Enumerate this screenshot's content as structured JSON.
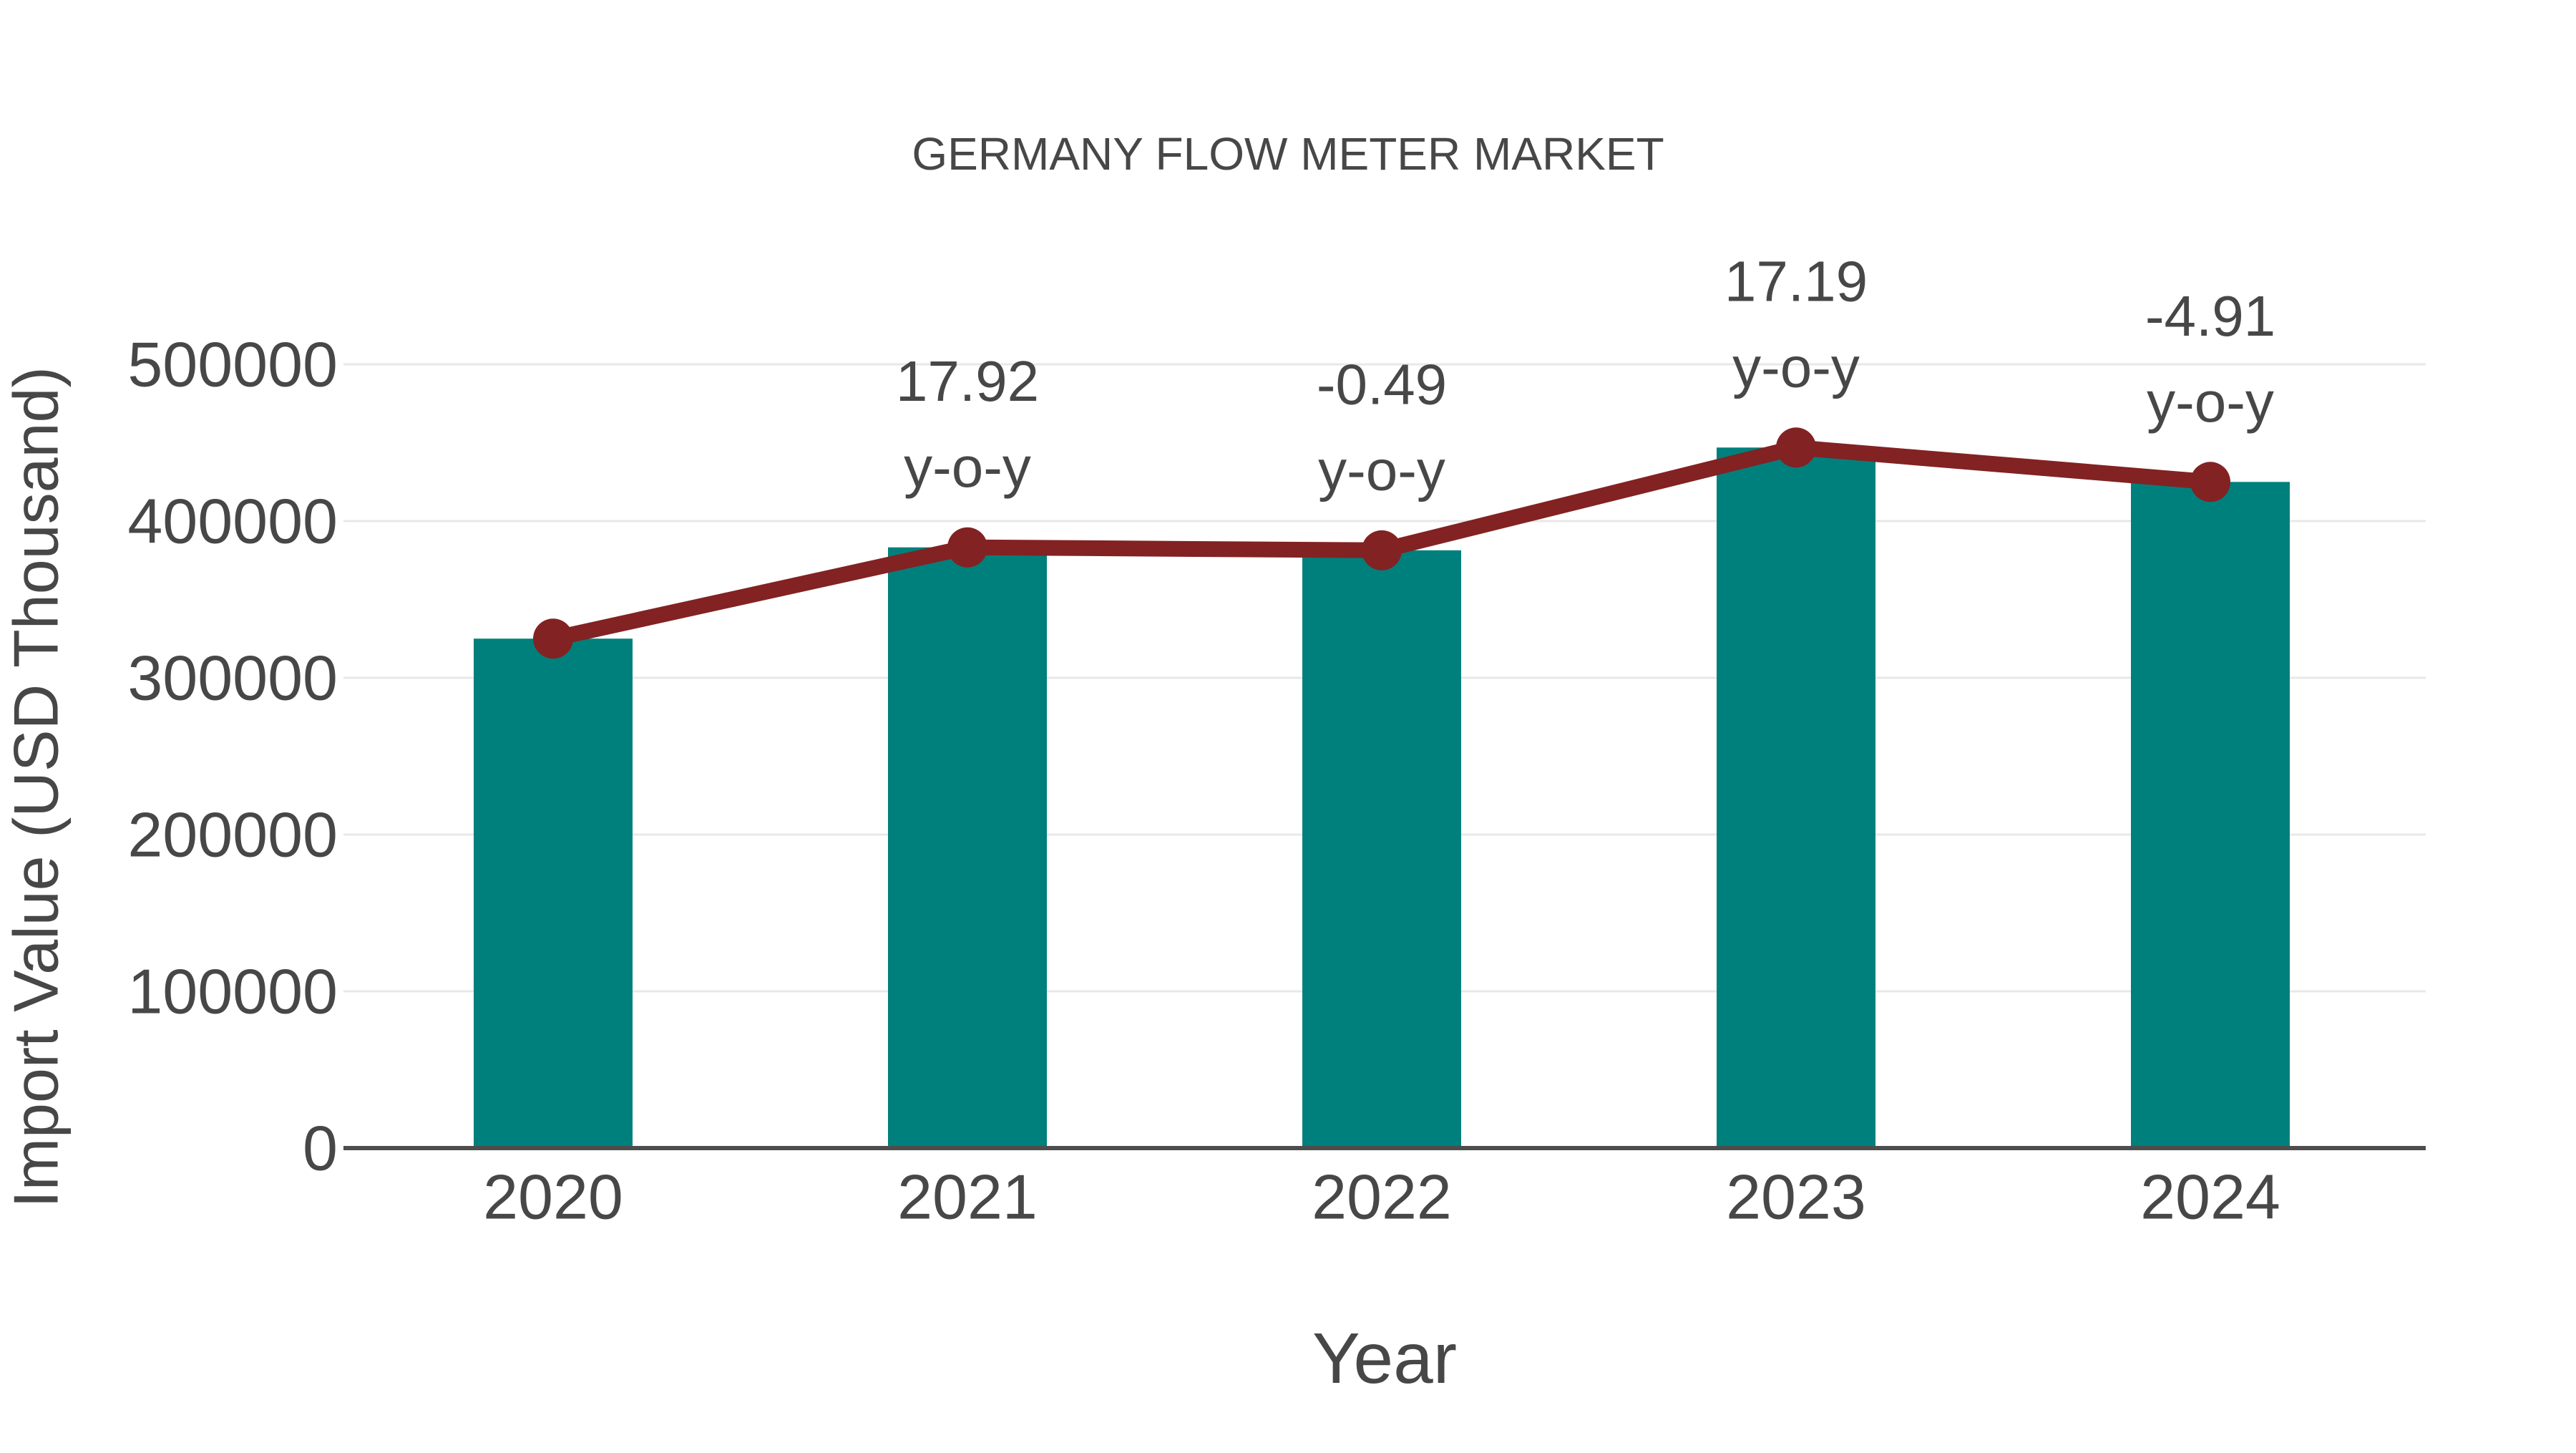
{
  "chart_data": {
    "type": "bar",
    "title": "GERMANY FLOW METER MARKET",
    "xlabel": "Year",
    "ylabel": "Import Value (USD Thousand)",
    "categories": [
      "2020",
      "2021",
      "2022",
      "2023",
      "2024"
    ],
    "series": [
      {
        "name": "import-value-bars",
        "type": "bar",
        "values": [
          325000,
          383240,
          381362,
          446918,
          424974
        ]
      },
      {
        "name": "import-value-trend-line",
        "type": "line",
        "values": [
          325000,
          383240,
          381362,
          446918,
          424974
        ]
      }
    ],
    "annotations": [
      {
        "category": "2021",
        "value_label": "17.92",
        "suffix_label": "y-o-y"
      },
      {
        "category": "2022",
        "value_label": "-0.49",
        "suffix_label": "y-o-y"
      },
      {
        "category": "2023",
        "value_label": "17.19",
        "suffix_label": "y-o-y"
      },
      {
        "category": "2024",
        "value_label": "-4.91",
        "suffix_label": "y-o-y"
      }
    ],
    "ylim": [
      0,
      500000
    ],
    "ytick_step": 100000,
    "ytick_labels": [
      "0",
      "100000",
      "200000",
      "300000",
      "400000",
      "500000"
    ],
    "grid": true,
    "legend_position": "none",
    "colors": {
      "bar": "#00807C",
      "line": "#822223",
      "marker": "#822223",
      "text": "#474747",
      "gridline": "#e8e8e8",
      "axis_line": "#4d4d4d",
      "background": "#ffffff"
    }
  }
}
